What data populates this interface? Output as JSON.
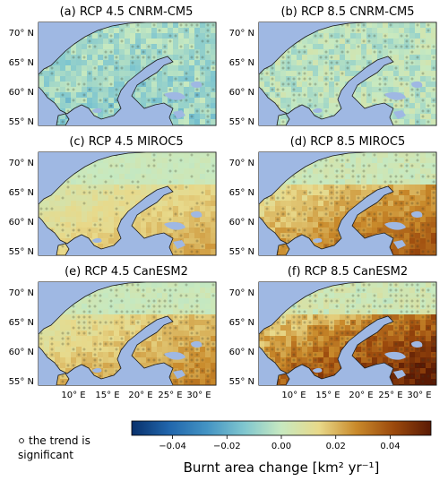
{
  "panels": [
    {
      "label": "(a) RCP 4.5 CNRM-CM5",
      "scenario": "RCP 4.5",
      "model": "CNRM-CM5",
      "intensity": 0.05,
      "sig": 0.55
    },
    {
      "label": "(b) RCP 8.5 CNRM-CM5",
      "scenario": "RCP 8.5",
      "model": "CNRM-CM5",
      "intensity": 0.15,
      "sig": 0.6
    },
    {
      "label": "(c) RCP 4.5 MIROC5",
      "scenario": "RCP 4.5",
      "model": "MIROC5",
      "intensity": 0.35,
      "sig": 0.4
    },
    {
      "label": "(d) RCP 8.5 MIROC5",
      "scenario": "RCP 8.5",
      "model": "MIROC5",
      "intensity": 0.6,
      "sig": 0.7
    },
    {
      "label": "(e) RCP 4.5 CanESM2",
      "scenario": "RCP 4.5",
      "model": "CanESM2",
      "intensity": 0.45,
      "sig": 0.75
    },
    {
      "label": "(f) RCP 8.5 CanESM2",
      "scenario": "RCP 8.5",
      "model": "CanESM2",
      "intensity": 0.85,
      "sig": 0.9
    }
  ],
  "lat_labels": [
    "70° N",
    "65° N",
    "60° N",
    "55° N"
  ],
  "lon_labels": [
    "10° E",
    "15° E",
    "20° E",
    "25° E",
    "30° E"
  ],
  "colorbar": {
    "label": "Burnt area change [km² yr⁻¹]",
    "ticks": [
      "−0.04",
      "−0.02",
      "0.00",
      "0.02",
      "0.04"
    ],
    "tick_values": [
      -0.04,
      -0.02,
      0.0,
      0.02,
      0.04
    ],
    "range": [
      -0.055,
      0.055
    ],
    "colors": [
      "#08306b",
      "#2166ac",
      "#4393c3",
      "#7fc6cf",
      "#c7e9c0",
      "#e8d98a",
      "#c98a2b",
      "#9c4a0d",
      "#5a1a04"
    ]
  },
  "legend": {
    "marker": "∘",
    "text_line1": "the trend is",
    "text_line2": "significant"
  },
  "colors": {
    "sea": "#9fb8e3",
    "land_base": "#b8e4c9",
    "coast": "#1a1a1a"
  }
}
